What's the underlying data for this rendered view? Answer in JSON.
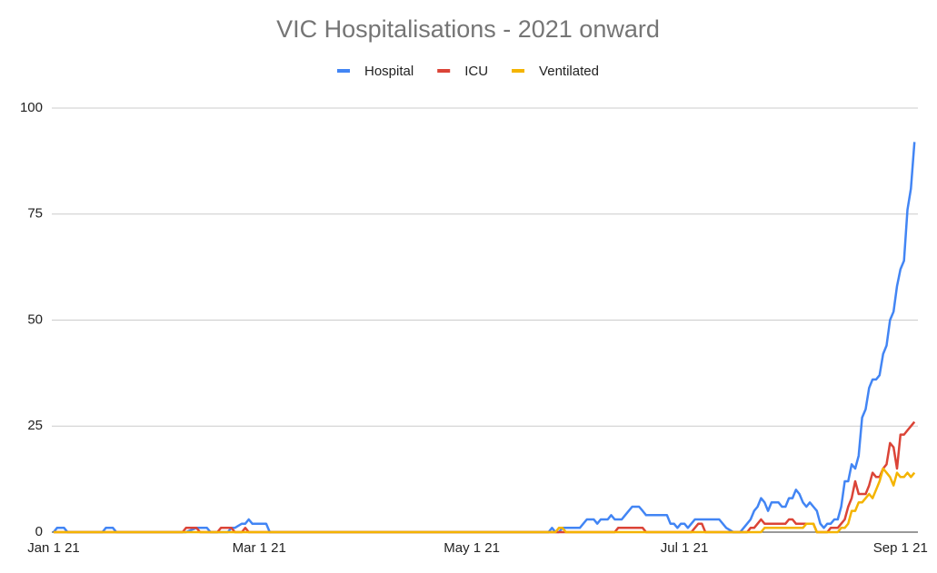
{
  "chart_data": {
    "type": "line",
    "title": "VIC Hospitalisations - 2021 onward",
    "legend": "top",
    "grid": true,
    "x": [
      "2021-01-01",
      "2021-01-02",
      "2021-01-04",
      "2021-01-05",
      "2021-01-15",
      "2021-01-16",
      "2021-01-18",
      "2021-01-19",
      "2021-02-07",
      "2021-02-08",
      "2021-02-11",
      "2021-02-12",
      "2021-02-14",
      "2021-02-15",
      "2021-02-17",
      "2021-02-18",
      "2021-02-20",
      "2021-02-21",
      "2021-02-22",
      "2021-02-24",
      "2021-02-25",
      "2021-02-26",
      "2021-02-27",
      "2021-03-03",
      "2021-03-04",
      "2021-05-21",
      "2021-05-23",
      "2021-05-24",
      "2021-05-25",
      "2021-05-26",
      "2021-05-27",
      "2021-05-28",
      "2021-06-01",
      "2021-06-03",
      "2021-06-05",
      "2021-06-06",
      "2021-06-07",
      "2021-06-09",
      "2021-06-10",
      "2021-06-11",
      "2021-06-12",
      "2021-06-13",
      "2021-06-14",
      "2021-06-16",
      "2021-06-18",
      "2021-06-19",
      "2021-06-20",
      "2021-06-26",
      "2021-06-27",
      "2021-06-28",
      "2021-06-29",
      "2021-06-30",
      "2021-07-01",
      "2021-07-02",
      "2021-07-03",
      "2021-07-04",
      "2021-07-05",
      "2021-07-06",
      "2021-07-07",
      "2021-07-11",
      "2021-07-13",
      "2021-07-15",
      "2021-07-17",
      "2021-07-18",
      "2021-07-19",
      "2021-07-20",
      "2021-07-21",
      "2021-07-22",
      "2021-07-23",
      "2021-07-24",
      "2021-07-25",
      "2021-07-26",
      "2021-07-28",
      "2021-07-29",
      "2021-07-30",
      "2021-07-31",
      "2021-08-01",
      "2021-08-02",
      "2021-08-03",
      "2021-08-04",
      "2021-08-05",
      "2021-08-06",
      "2021-08-07",
      "2021-08-08",
      "2021-08-09",
      "2021-08-10",
      "2021-08-11",
      "2021-08-12",
      "2021-08-13",
      "2021-08-14",
      "2021-08-15",
      "2021-08-16",
      "2021-08-17",
      "2021-08-18",
      "2021-08-19",
      "2021-08-20",
      "2021-08-21",
      "2021-08-22",
      "2021-08-23",
      "2021-08-24",
      "2021-08-25",
      "2021-08-26",
      "2021-08-27",
      "2021-08-28",
      "2021-08-29",
      "2021-08-30",
      "2021-08-31",
      "2021-09-01",
      "2021-09-02",
      "2021-09-03",
      "2021-09-04",
      "2021-09-05"
    ],
    "series": [
      {
        "name": "Hospital",
        "color": "#4285f4",
        "values": [
          0,
          1,
          1,
          0,
          0,
          1,
          1,
          0,
          0,
          0,
          1,
          1,
          1,
          0,
          0,
          0,
          0,
          1,
          1,
          2,
          2,
          3,
          2,
          2,
          0,
          0,
          0,
          1,
          0,
          0,
          1,
          1,
          1,
          3,
          3,
          2,
          3,
          3,
          4,
          3,
          3,
          3,
          4,
          6,
          6,
          5,
          4,
          4,
          2,
          2,
          1,
          2,
          2,
          1,
          2,
          3,
          3,
          3,
          3,
          3,
          1,
          0,
          0,
          1,
          2,
          3,
          5,
          6,
          8,
          7,
          5,
          7,
          7,
          6,
          6,
          8,
          8,
          10,
          9,
          7,
          6,
          7,
          6,
          5,
          2,
          1,
          2,
          2,
          3,
          3,
          6,
          12,
          12,
          16,
          15,
          18,
          27,
          29,
          34,
          36,
          36,
          37,
          42,
          44,
          50,
          52,
          58,
          62,
          64,
          76,
          81,
          92
        ]
      },
      {
        "name": "ICU",
        "color": "#db4437",
        "values": [
          0,
          0,
          0,
          0,
          0,
          0,
          0,
          0,
          0,
          1,
          1,
          0,
          0,
          0,
          0,
          1,
          1,
          1,
          0,
          0,
          1,
          0,
          0,
          0,
          0,
          0,
          0,
          0,
          0,
          0,
          0,
          0,
          0,
          0,
          0,
          0,
          0,
          0,
          0,
          0,
          1,
          1,
          1,
          1,
          1,
          1,
          0,
          0,
          0,
          0,
          0,
          0,
          0,
          0,
          0,
          1,
          2,
          2,
          0,
          0,
          0,
          0,
          0,
          0,
          0,
          1,
          1,
          2,
          3,
          2,
          2,
          2,
          2,
          2,
          2,
          3,
          3,
          2,
          2,
          2,
          2,
          2,
          2,
          0,
          0,
          0,
          0,
          1,
          1,
          1,
          2,
          3,
          6,
          8,
          12,
          9,
          9,
          9,
          11,
          14,
          13,
          13,
          15,
          16,
          21,
          20,
          15,
          23,
          23,
          24,
          25,
          26
        ]
      },
      {
        "name": "Ventilated",
        "color": "#f4b400",
        "values": [
          0,
          0,
          0,
          0,
          0,
          0,
          0,
          0,
          0,
          0,
          0,
          0,
          0,
          0,
          0,
          0,
          0,
          0,
          0,
          0,
          0,
          0,
          0,
          0,
          0,
          0,
          0,
          0,
          0,
          1,
          1,
          0,
          0,
          0,
          0,
          0,
          0,
          0,
          0,
          0,
          0,
          0,
          0,
          0,
          0,
          0,
          0,
          0,
          0,
          0,
          0,
          0,
          0,
          0,
          0,
          0,
          0,
          0,
          0,
          0,
          0,
          0,
          0,
          0,
          0,
          0,
          0,
          0,
          0,
          1,
          1,
          1,
          1,
          1,
          1,
          1,
          1,
          1,
          1,
          1,
          2,
          2,
          2,
          0,
          0,
          0,
          0,
          0,
          0,
          0,
          1,
          1,
          2,
          5,
          5,
          7,
          7,
          8,
          9,
          8,
          10,
          12,
          15,
          14,
          13,
          11,
          14,
          13,
          13,
          14,
          13,
          14
        ]
      }
    ],
    "xlim": [
      "2021-01-01",
      "2021-09-06"
    ],
    "xticks": [
      {
        "value": "2021-01-01",
        "label": "Jan 1 21"
      },
      {
        "value": "2021-03-01",
        "label": "Mar 1 21"
      },
      {
        "value": "2021-05-01",
        "label": "May 1 21"
      },
      {
        "value": "2021-07-01",
        "label": "Jul 1 21"
      },
      {
        "value": "2021-09-01",
        "label": "Sep 1 21"
      }
    ],
    "ylim": [
      0,
      100
    ],
    "yticks": [
      0,
      25,
      50,
      75,
      100
    ]
  }
}
